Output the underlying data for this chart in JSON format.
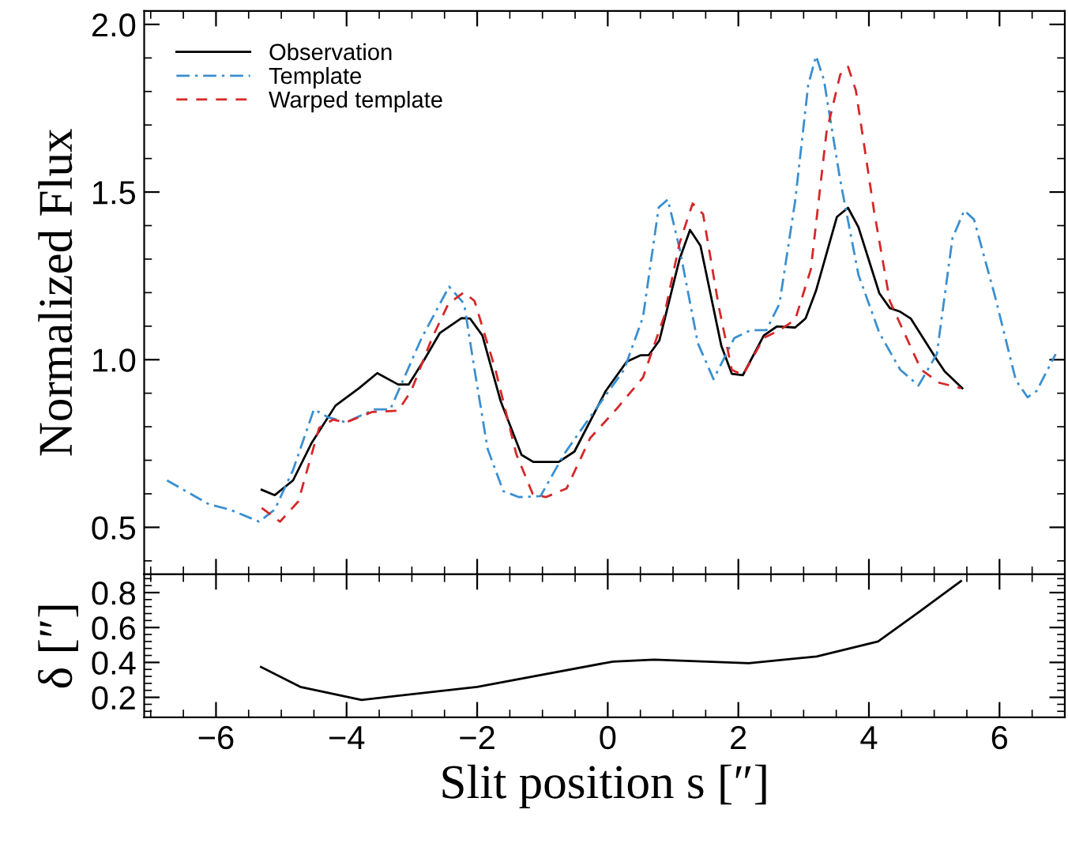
{
  "chart_data": [
    {
      "type": "line",
      "ylabel": "Normalized Flux",
      "xlim": [
        -7.1,
        7.0
      ],
      "ylim": [
        0.36,
        2.04
      ],
      "xticks": [
        {
          "value": -6,
          "label": null
        },
        {
          "value": -4,
          "label": null
        },
        {
          "value": -2,
          "label": null
        },
        {
          "value": 0,
          "label": null
        },
        {
          "value": 2,
          "label": null
        },
        {
          "value": 4,
          "label": null
        },
        {
          "value": 6,
          "label": null
        }
      ],
      "yticks": [
        0.5,
        {
          "value": 1.0,
          "label": "1.0"
        },
        1.5,
        {
          "value": 2.0,
          "label": "2.0"
        }
      ],
      "tick_labels": "y",
      "legend": "top left",
      "grid": false,
      "series": [
        {
          "name": "Observation",
          "color": "#000000",
          "line_style": "solid",
          "x": [
            -5.3,
            -5.1,
            -4.82,
            -4.54,
            -4.17,
            -3.81,
            -3.53,
            -3.21,
            -3.05,
            -2.81,
            -2.57,
            -2.24,
            -2.11,
            -1.92,
            -1.64,
            -1.32,
            -1.14,
            -0.75,
            -0.51,
            -0.03,
            0.29,
            0.5,
            0.63,
            0.79,
            1.1,
            1.26,
            1.42,
            1.74,
            1.9,
            2.07,
            2.39,
            2.59,
            2.87,
            3.03,
            3.19,
            3.51,
            3.68,
            3.84,
            4.16,
            4.32,
            4.48,
            4.64,
            5.04,
            5.16,
            5.43
          ],
          "values": [
            0.612,
            0.596,
            0.64,
            0.75,
            0.863,
            0.915,
            0.96,
            0.926,
            0.926,
            1.0,
            1.08,
            1.124,
            1.123,
            1.072,
            0.876,
            0.716,
            0.695,
            0.695,
            0.726,
            0.907,
            0.994,
            1.013,
            1.014,
            1.057,
            1.3,
            1.387,
            1.34,
            1.041,
            0.958,
            0.954,
            1.072,
            1.099,
            1.096,
            1.123,
            1.206,
            1.426,
            1.453,
            1.395,
            1.198,
            1.154,
            1.143,
            1.123,
            1.0,
            0.965,
            0.915
          ]
        },
        {
          "name": "Template",
          "color": "#3a8fd0",
          "line_style": "dashdot",
          "x": [
            -6.75,
            -6.11,
            -5.79,
            -5.34,
            -5.1,
            -4.82,
            -4.5,
            -4.29,
            -4.01,
            -3.57,
            -3.33,
            -2.85,
            -2.43,
            -2.2,
            -2.04,
            -1.84,
            -1.6,
            -1.36,
            -1.03,
            -0.67,
            -0.27,
            0.25,
            0.54,
            0.78,
            0.92,
            1.1,
            1.38,
            1.62,
            1.94,
            2.19,
            2.43,
            2.63,
            2.87,
            3.07,
            3.19,
            3.31,
            3.56,
            3.84,
            4.16,
            4.48,
            4.76,
            5.04,
            5.28,
            5.46,
            5.61,
            5.93,
            6.25,
            6.43,
            6.57,
            6.86
          ],
          "values": [
            0.64,
            0.569,
            0.553,
            0.517,
            0.553,
            0.671,
            0.852,
            0.829,
            0.813,
            0.852,
            0.852,
            1.065,
            1.218,
            1.167,
            0.97,
            0.734,
            0.608,
            0.59,
            0.593,
            0.718,
            0.829,
            0.97,
            1.127,
            1.454,
            1.478,
            1.332,
            1.049,
            0.942,
            1.065,
            1.088,
            1.088,
            1.167,
            1.473,
            1.819,
            1.906,
            1.835,
            1.536,
            1.253,
            1.08,
            0.97,
            0.923,
            1.017,
            1.363,
            1.445,
            1.418,
            1.19,
            0.939,
            0.888,
            0.907,
            1.017
          ]
        },
        {
          "name": "Warped template",
          "color": "#d62728",
          "line_style": "dashed",
          "x": [
            -5.3,
            -5.02,
            -4.74,
            -4.42,
            -4.21,
            -4.01,
            -3.61,
            -3.21,
            -3.01,
            -2.69,
            -2.44,
            -2.2,
            -2.04,
            -1.72,
            -1.4,
            -1.15,
            -0.95,
            -0.63,
            -0.27,
            0.13,
            0.54,
            0.86,
            1.1,
            1.3,
            1.46,
            1.7,
            1.9,
            2.07,
            2.39,
            2.63,
            2.87,
            3.11,
            3.35,
            3.56,
            3.68,
            3.8,
            4.08,
            4.32,
            4.56,
            4.8,
            5.08,
            5.41
          ],
          "values": [
            0.558,
            0.517,
            0.577,
            0.797,
            0.821,
            0.813,
            0.844,
            0.848,
            0.907,
            1.065,
            1.167,
            1.201,
            1.175,
            0.97,
            0.718,
            0.6,
            0.59,
            0.616,
            0.766,
            0.852,
            0.947,
            1.127,
            1.348,
            1.466,
            1.434,
            1.159,
            0.97,
            0.954,
            1.065,
            1.088,
            1.119,
            1.269,
            1.678,
            1.85,
            1.874,
            1.803,
            1.442,
            1.175,
            1.072,
            0.97,
            0.931,
            0.915
          ]
        }
      ]
    },
    {
      "type": "line",
      "xlabel": "Slit position s [″]",
      "ylabel": "δ [″]",
      "xlim": [
        -7.1,
        7.0
      ],
      "ylim": [
        0.085,
        0.905
      ],
      "xticks": [
        {
          "value": -6,
          "label": "−6"
        },
        {
          "value": -4,
          "label": "−4"
        },
        {
          "value": -2,
          "label": "−2"
        },
        0,
        2,
        4,
        6
      ],
      "yticks": [
        0.2,
        0.4,
        0.6,
        0.8
      ],
      "grid": false,
      "series": [
        {
          "color": "#000000",
          "line_style": "solid",
          "x": [
            -5.31,
            -4.71,
            -3.77,
            -2.0,
            0.08,
            0.71,
            2.16,
            3.2,
            4.14,
            4.77,
            5.41
          ],
          "values": [
            0.374,
            0.26,
            0.185,
            0.26,
            0.405,
            0.416,
            0.396,
            0.434,
            0.52,
            0.69,
            0.866
          ]
        }
      ]
    }
  ]
}
